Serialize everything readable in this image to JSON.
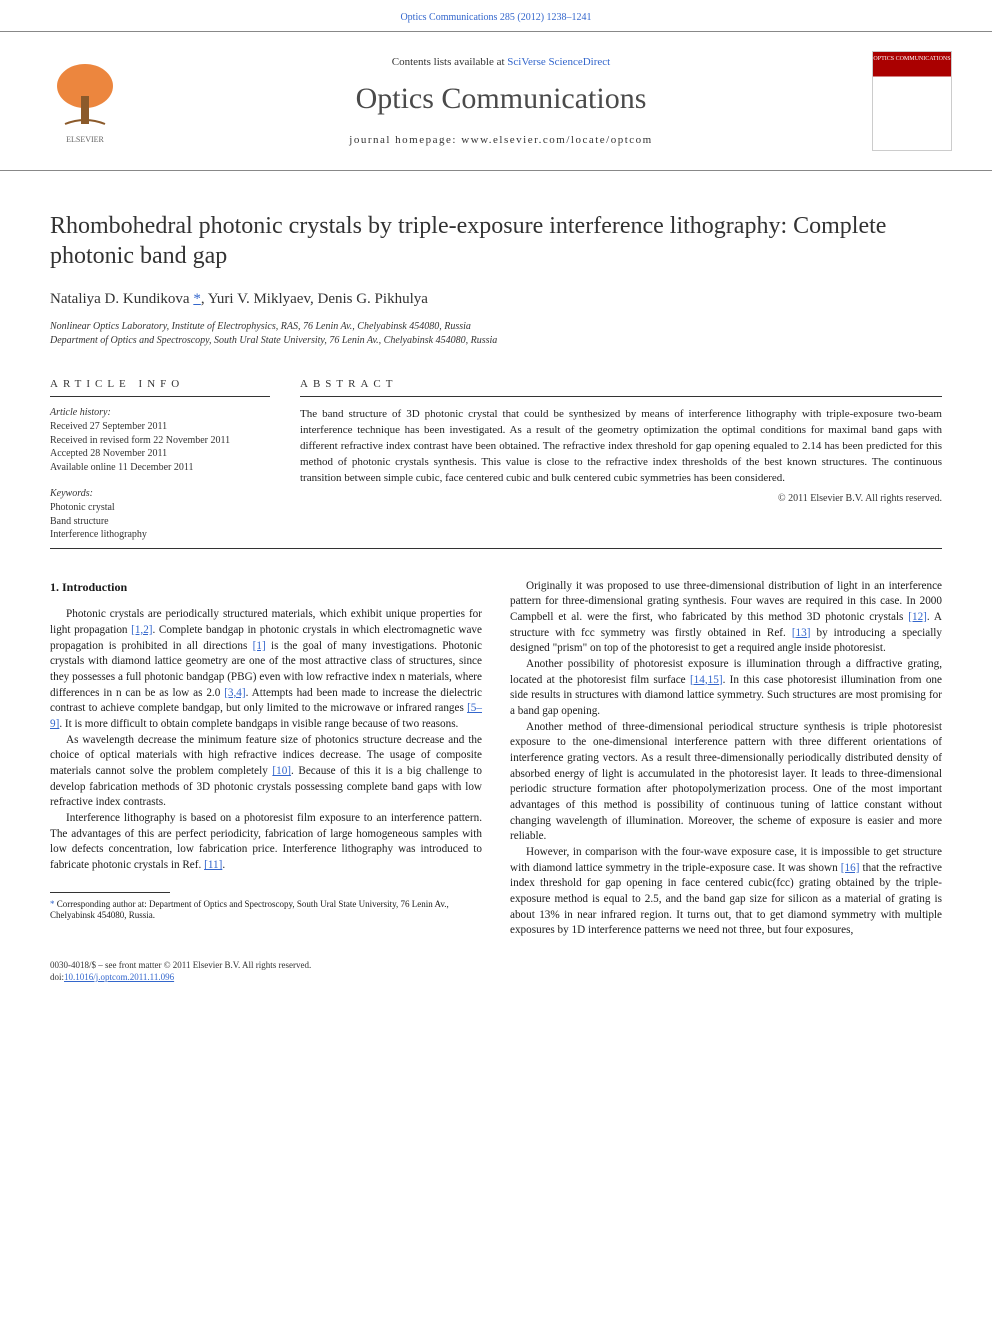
{
  "header": {
    "citation": "Optics Communications 285 (2012) 1238–1241",
    "contents_prefix": "Contents lists available at ",
    "contents_link": "SciVerse ScienceDirect",
    "journal_name": "Optics Communications",
    "homepage_prefix": "journal homepage: ",
    "homepage": "www.elsevier.com/locate/optcom",
    "cover_label": "OPTICS COMMUNICATIONS"
  },
  "title": "Rhombohedral photonic crystals by triple-exposure interference lithography: Complete photonic band gap",
  "authors": "Nataliya D. Kundikova ",
  "authors_rest": ", Yuri V. Miklyaev, Denis G. Pikhulya",
  "corr_symbol": "*",
  "affiliations": [
    "Nonlinear Optics Laboratory, Institute of Electrophysics, RAS, 76 Lenin Av., Chelyabinsk 454080, Russia",
    "Department of Optics and Spectroscopy, South Ural State University, 76 Lenin Av., Chelyabinsk 454080, Russia"
  ],
  "article_info": {
    "label": "article info",
    "history_head": "Article history:",
    "history": [
      "Received 27 September 2011",
      "Received in revised form 22 November 2011",
      "Accepted 28 November 2011",
      "Available online 11 December 2011"
    ],
    "keywords_head": "Keywords:",
    "keywords": [
      "Photonic crystal",
      "Band structure",
      "Interference lithography"
    ]
  },
  "abstract": {
    "label": "abstract",
    "text": "The band structure of 3D photonic crystal that could be synthesized by means of interference lithography with triple-exposure two-beam interference technique has been investigated. As a result of the geometry optimization the optimal conditions for maximal band gaps with different refractive index contrast have been obtained. The refractive index threshold for gap opening equaled to 2.14 has been predicted for this method of photonic crystals synthesis. This value is close to the refractive index thresholds of the best known structures. The continuous transition between simple cubic, face centered cubic and bulk centered cubic symmetries has been considered.",
    "copyright": "© 2011 Elsevier B.V. All rights reserved."
  },
  "section_heading": "1. Introduction",
  "left_paragraphs": [
    "Photonic crystals are periodically structured materials, which exhibit unique properties for light propagation [1,2]. Complete bandgap in photonic crystals in which electromagnetic wave propagation is prohibited in all directions [1] is the goal of many investigations. Photonic crystals with diamond lattice geometry are one of the most attractive class of structures, since they possesses a full photonic bandgap (PBG) even with low refractive index n materials, where differences in n can be as low as 2.0 [3,4]. Attempts had been made to increase the dielectric contrast to achieve complete bandgap, but only limited to the microwave or infrared ranges [5–9]. It is more difficult to obtain complete bandgaps in visible range because of two reasons.",
    "As wavelength decrease the minimum feature size of photonics structure decrease and the choice of optical materials with high refractive indices decrease. The usage of composite materials cannot solve the problem completely [10]. Because of this it is a big challenge to develop fabrication methods of 3D photonic crystals possessing complete band gaps with low refractive index contrasts.",
    "Interference lithography is based on a photoresist film exposure to an interference pattern. The advantages of this are perfect periodicity, fabrication of large homogeneous samples with low defects concentration, low fabrication price. Interference lithography was introduced to fabricate photonic crystals in Ref. [11]."
  ],
  "right_paragraphs": [
    "Originally it was proposed to use three-dimensional distribution of light in an interference pattern for three-dimensional grating synthesis. Four waves are required in this case. In 2000 Campbell et al. were the first, who fabricated by this method 3D photonic crystals [12]. A structure with fcc symmetry was firstly obtained in Ref. [13] by introducing a specially designed \"prism\" on top of the photoresist to get a required angle inside photoresist.",
    "Another possibility of photoresist exposure is illumination through a diffractive grating, located at the photoresist film surface [14,15]. In this case photoresist illumination from one side results in structures with diamond lattice symmetry. Such structures are most promising for a band gap opening.",
    "Another method of three-dimensional periodical structure synthesis is triple photoresist exposure to the one-dimensional interference pattern with three different orientations of interference grating vectors. As a result three-dimensionally periodically distributed density of absorbed energy of light is accumulated in the photoresist layer. It leads to three-dimensional periodic structure formation after photopolymerization process. One of the most important advantages of this method is possibility of continuous tuning of lattice constant without changing wavelength of illumination. Moreover, the scheme of exposure is easier and more reliable.",
    "However, in comparison with the four-wave exposure case, it is impossible to get structure with diamond lattice symmetry in the triple-exposure case. It was shown [16] that the refractive index threshold for gap opening in face centered cubic(fcc) grating obtained by the triple-exposure method is equal to 2.5, and the band gap size for silicon as a material of grating is about 13% in near infrared region. It turns out, that to get diamond symmetry with multiple exposures by 1D interference patterns we need not three, but four exposures,"
  ],
  "ref_annotations": {
    "[1,2]": true,
    "[1]": true,
    "[3,4]": true,
    "[5–9]": true,
    "[10]": true,
    "[11]": true,
    "[12]": true,
    "[13]": true,
    "[14,15]": true,
    "[16]": true
  },
  "footnote": {
    "marker": "*",
    "text": " Corresponding author at: Department of Optics and Spectroscopy, South Ural State University, 76 Lenin Av., Chelyabinsk 454080, Russia."
  },
  "footer": {
    "front_matter": "0030-4018/$ – see front matter © 2011 Elsevier B.V. All rights reserved.",
    "doi_prefix": "doi:",
    "doi": "10.1016/j.optcom.2011.11.096"
  },
  "colors": {
    "link": "#3366cc",
    "text": "#1a1a1a",
    "heading": "#333333",
    "elsevier_orange": "#e9711c"
  }
}
